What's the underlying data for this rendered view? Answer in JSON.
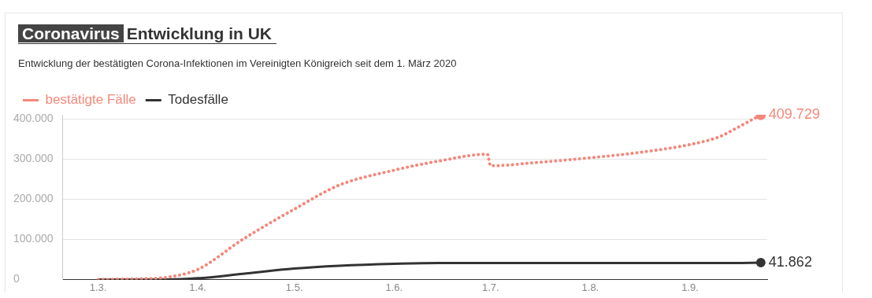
{
  "chart_data": {
    "type": "line",
    "title": "Coronavirus Entwicklung in UK",
    "subtitle": "Entwicklung der bestätigten Corona-Infektionen im Vereinigten Königreich seit dem 1. März 2020",
    "x": [
      "2020-03-01",
      "2020-03-15",
      "2020-03-22",
      "2020-04-01",
      "2020-04-15",
      "2020-05-01",
      "2020-05-15",
      "2020-06-01",
      "2020-06-15",
      "2020-06-30",
      "2020-07-01",
      "2020-07-15",
      "2020-08-01",
      "2020-08-15",
      "2020-09-01",
      "2020-09-10",
      "2020-09-15",
      "2020-09-23"
    ],
    "series": [
      {
        "name": "bestätigte Fälle",
        "color": "#f4877a",
        "line_style": "dotted",
        "values": [
          0,
          2000,
          5000,
          25000,
          100000,
          175000,
          235000,
          272000,
          295000,
          312000,
          283000,
          291000,
          303000,
          315000,
          336000,
          355000,
          375000,
          409729
        ],
        "value_labels": [
          null,
          null,
          null,
          null,
          null,
          null,
          null,
          null,
          null,
          null,
          null,
          null,
          null,
          null,
          null,
          null,
          null,
          "409.729"
        ]
      },
      {
        "name": "Todesfälle",
        "color": "#333333",
        "line_style": "solid",
        "values": [
          0,
          0,
          0,
          3000,
          14000,
          27000,
          34000,
          39000,
          41000,
          41000,
          41000,
          41000,
          41000,
          41000,
          41000,
          41000,
          41000,
          41862
        ],
        "value_labels": [
          null,
          null,
          null,
          null,
          null,
          null,
          null,
          null,
          null,
          null,
          null,
          null,
          null,
          null,
          null,
          null,
          null,
          "41.862"
        ]
      }
    ],
    "xlim": [
      "2020-02-19",
      "2020-09-25"
    ],
    "xticks": [
      {
        "value": "2020-03-01",
        "label": "1.3."
      },
      {
        "value": "2020-04-01",
        "label": "1.4."
      },
      {
        "value": "2020-05-01",
        "label": "1.5."
      },
      {
        "value": "2020-06-01",
        "label": "1.6."
      },
      {
        "value": "2020-07-01",
        "label": "1.7."
      },
      {
        "value": "2020-08-01",
        "label": "1.8."
      },
      {
        "value": "2020-09-01",
        "label": "1.9."
      }
    ],
    "yticks": [
      {
        "value": 0,
        "label": "0"
      },
      {
        "value": 100000,
        "label": "100.000"
      },
      {
        "value": 200000,
        "label": "200.000"
      },
      {
        "value": 300000,
        "label": "300.000"
      },
      {
        "value": 400000,
        "label": "400.000"
      }
    ],
    "ylim": [
      0,
      410000
    ],
    "grid": "y",
    "legend": "top left"
  }
}
